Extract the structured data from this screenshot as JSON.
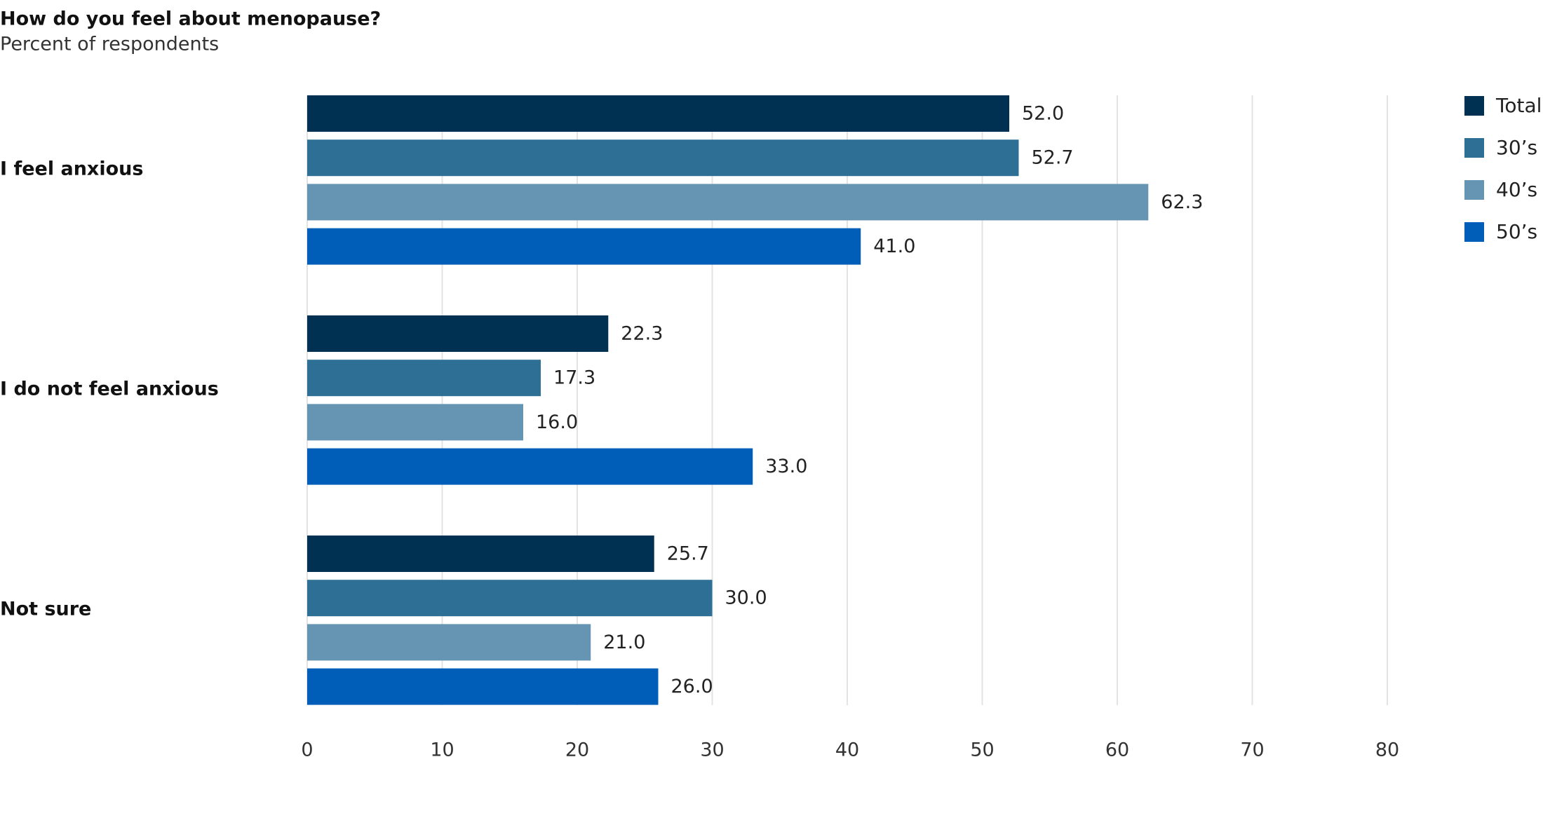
{
  "chart_data": {
    "type": "bar",
    "orientation": "horizontal",
    "title": "How do you feel about menopause?",
    "subtitle": "Percent of respondents",
    "categories": [
      "I feel anxious",
      "I do not feel anxious",
      "Not sure"
    ],
    "series": [
      {
        "name": "Total",
        "color": "#003152",
        "values": [
          52.0,
          22.3,
          25.7
        ],
        "value_labels": [
          "52.0",
          "22.3",
          "25.7"
        ]
      },
      {
        "name": "30’s",
        "color": "#2e6f96",
        "values": [
          52.7,
          17.3,
          30.0
        ],
        "value_labels": [
          "52.7",
          "17.3",
          "30.0"
        ]
      },
      {
        "name": "40’s",
        "color": "#6694b3",
        "values": [
          62.3,
          16.0,
          21.0
        ],
        "value_labels": [
          "62.3",
          "16.0",
          "21.0"
        ]
      },
      {
        "name": "50’s",
        "color": "#005eb8",
        "values": [
          41.0,
          33.0,
          26.0
        ],
        "value_labels": [
          "41.0",
          "33.0",
          "26.0"
        ]
      }
    ],
    "xlim": [
      0,
      80
    ],
    "xticks": [
      0,
      10,
      20,
      30,
      40,
      50,
      60,
      70,
      80
    ],
    "grid": true,
    "legend": "top-right"
  }
}
